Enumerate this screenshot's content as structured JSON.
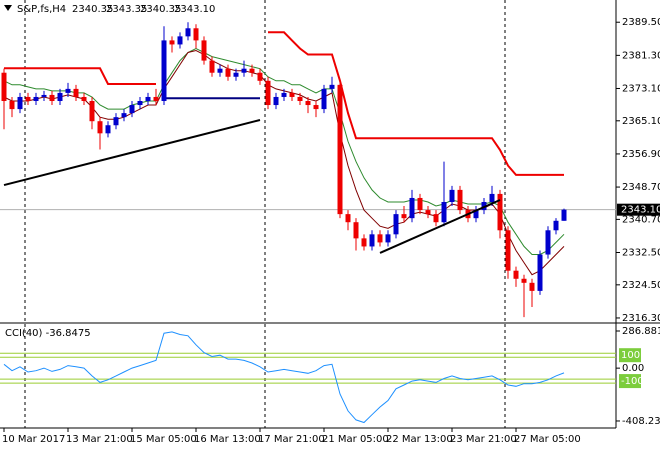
{
  "chart_data": [
    {
      "type": "candlestick",
      "title": "S&P,fs,H4",
      "ohlc_labels": [
        "2340.35",
        "2343.35",
        "2340.35",
        "2343.10"
      ],
      "open": [
        2377,
        2370,
        2368,
        2371,
        2370,
        2371,
        2371.5,
        2370,
        2372,
        2373,
        2371,
        2370,
        2365,
        2362,
        2364,
        2366,
        2367,
        2369,
        2370,
        2371,
        2370,
        2385,
        2384,
        2386,
        2388,
        2385,
        2380,
        2377,
        2378,
        2376,
        2377,
        2378,
        2377,
        2375,
        2369,
        2371,
        2372,
        2371,
        2370,
        2369,
        2368,
        2373,
        2374,
        2342,
        2340,
        2336,
        2334,
        2337,
        2335,
        2337,
        2342,
        2341,
        2346,
        2343,
        2342,
        2340,
        2345,
        2348,
        2343,
        2341,
        2343,
        2345,
        2347,
        2338,
        2328,
        2326,
        2325,
        2323,
        2332,
        2338,
        2340.35
      ],
      "high": [
        2378,
        2371,
        2372,
        2372,
        2372,
        2372.5,
        2372.5,
        2373,
        2374.5,
        2374,
        2372,
        2371,
        2366,
        2365,
        2367,
        2368,
        2370,
        2371,
        2372,
        2373,
        2388.5,
        2386,
        2387,
        2389.5,
        2389,
        2386,
        2381,
        2379,
        2379,
        2378,
        2380,
        2379,
        2378,
        2376,
        2372,
        2373,
        2373,
        2372,
        2371,
        2370,
        2374,
        2376,
        2375,
        2343,
        2341,
        2337,
        2338,
        2338,
        2338,
        2343,
        2344,
        2348,
        2347,
        2344,
        2343,
        2355,
        2349,
        2349,
        2344,
        2344,
        2346,
        2349,
        2348,
        2339,
        2329,
        2327,
        2326,
        2333,
        2339,
        2341,
        2343.35
      ],
      "low": [
        2363,
        2366,
        2367,
        2369,
        2369,
        2370,
        2369,
        2369,
        2371,
        2370,
        2369,
        2363,
        2358,
        2361,
        2363,
        2365,
        2366,
        2368,
        2369,
        2369,
        2369,
        2382,
        2383,
        2385,
        2383,
        2379,
        2376,
        2376,
        2375,
        2375,
        2376,
        2376,
        2374,
        2368,
        2368,
        2370,
        2370,
        2369,
        2367,
        2366,
        2367,
        2372,
        2341,
        2338,
        2333,
        2333,
        2333,
        2334,
        2334,
        2336,
        2340,
        2340,
        2342,
        2341,
        2339,
        2339,
        2344,
        2342,
        2340,
        2340,
        2342,
        2344,
        2336,
        2326,
        2324,
        2316.5,
        2319,
        2322,
        2331,
        2337,
        2340.35
      ],
      "close": [
        2370,
        2368,
        2371,
        2370,
        2371,
        2371.5,
        2370,
        2372,
        2373,
        2371,
        2370,
        2365,
        2362,
        2364,
        2366,
        2367,
        2369,
        2370,
        2371,
        2370,
        2385,
        2384,
        2386,
        2388,
        2385,
        2380,
        2377,
        2378,
        2376,
        2377,
        2378,
        2377,
        2375,
        2369,
        2371,
        2372,
        2371,
        2370,
        2369,
        2368,
        2373,
        2374,
        2342,
        2340,
        2336,
        2334,
        2337,
        2335,
        2337,
        2342,
        2341,
        2346,
        2343,
        2342,
        2340,
        2345,
        2348,
        2343,
        2341,
        2343,
        2345,
        2347,
        2338,
        2328,
        2326,
        2325,
        2323,
        2332,
        2338,
        2340.35,
        2343.1
      ],
      "up_color": "#0000cd",
      "down_color": "#ee0000",
      "ylim": [
        2315.3,
        2395
      ],
      "yticks": [
        {
          "value": 2389.5,
          "label": "2389.50"
        },
        {
          "value": 2381.3,
          "label": "2381.30"
        },
        {
          "value": 2373.1,
          "label": "2373.10"
        },
        {
          "value": 2365.1,
          "label": "2365.10"
        },
        {
          "value": 2356.9,
          "label": "2356.90"
        },
        {
          "value": 2348.7,
          "label": "2348.70"
        },
        {
          "value": 2340.7,
          "label": "2340.70"
        },
        {
          "value": 2332.5,
          "label": "2332.50"
        },
        {
          "value": 2324.5,
          "label": "2324.50"
        },
        {
          "value": 2316.3,
          "label": "2316.30"
        }
      ],
      "current_price": {
        "value": 2343.1,
        "label": "2343.10"
      },
      "lines": [
        {
          "color": "#2e8b2e",
          "values": [
            2375,
            2374,
            2374,
            2373.5,
            2373,
            2373,
            2372.5,
            2372.5,
            2372.5,
            2372,
            2372,
            2371,
            2369,
            2368,
            2368,
            2368,
            2369,
            2369.5,
            2370,
            2370,
            2374,
            2377,
            2380,
            2382,
            2383,
            2382,
            2381,
            2380.5,
            2380,
            2379.5,
            2379,
            2378.5,
            2378,
            2376,
            2375,
            2375,
            2374,
            2374,
            2373,
            2372,
            2373,
            2373,
            2367,
            2360,
            2355,
            2351,
            2348,
            2346,
            2345,
            2345,
            2345,
            2345.5,
            2345.5,
            2345,
            2344,
            2344.5,
            2345.5,
            2345,
            2344.5,
            2344.5,
            2344.5,
            2345,
            2344,
            2340,
            2337,
            2334,
            2332,
            2332,
            2333,
            2335,
            2337
          ]
        },
        {
          "color": "#800000",
          "values": [
            2371,
            2370,
            2370,
            2370,
            2370.5,
            2371,
            2370.5,
            2371,
            2371.5,
            2371,
            2370.5,
            2368.5,
            2366,
            2365.5,
            2365.5,
            2366,
            2367,
            2368,
            2369,
            2369,
            2373,
            2376,
            2379,
            2382,
            2382.5,
            2381.5,
            2380,
            2379,
            2378,
            2377.5,
            2377.5,
            2377,
            2376.5,
            2374,
            2373,
            2372.5,
            2372,
            2371.5,
            2370.5,
            2370,
            2371,
            2372,
            2362,
            2354,
            2348,
            2343,
            2341,
            2339,
            2338.5,
            2339.5,
            2340,
            2342,
            2342.5,
            2342,
            2341.5,
            2343,
            2344.5,
            2344,
            2343,
            2343,
            2343.5,
            2344.5,
            2342,
            2337,
            2333,
            2330,
            2327,
            2328,
            2330,
            2332,
            2334
          ]
        },
        {
          "color": "#ee0000",
          "values": [
            2378.1,
            2378.1,
            2378.1,
            2378.1,
            2378.1,
            2378.1,
            2378.1,
            2378.1,
            2378.1,
            2378.1,
            2378.1,
            2378.1,
            2378.1,
            2374.2,
            2374.2,
            2374.2,
            2374.2,
            2374.2,
            2374.2,
            2374.2,
            null,
            null,
            null,
            null,
            null,
            null,
            null,
            null,
            null,
            null,
            null,
            null,
            null,
            2387,
            2387,
            2387,
            2385,
            2383,
            2381.5,
            2381.5,
            2381.5,
            2381.5,
            2375,
            2367,
            2360.8,
            2360.8,
            2360.8,
            2360.8,
            2360.8,
            2360.8,
            2360.8,
            2360.8,
            2360.8,
            2360.8,
            2360.8,
            2360.8,
            2360.8,
            2360.8,
            2360.8,
            2360.8,
            2360.8,
            2360.8,
            2357.9,
            2354,
            2351.7,
            2351.7,
            2351.7,
            2351.7,
            2351.7,
            2351.7,
            2351.7
          ]
        },
        {
          "color": "#000080",
          "values": [
            null,
            null,
            null,
            null,
            null,
            null,
            null,
            null,
            null,
            null,
            null,
            null,
            null,
            null,
            null,
            null,
            null,
            null,
            null,
            null,
            2370.7,
            2370.7,
            2370.7,
            2370.7,
            2370.7,
            2370.7,
            2370.7,
            2370.7,
            2370.7,
            2370.7,
            2370.7,
            2370.7,
            2370.7,
            null,
            null,
            null,
            null,
            null,
            null,
            null,
            null,
            null,
            null,
            null,
            null,
            null,
            null,
            null,
            null,
            null,
            null,
            null,
            null,
            null,
            null,
            null,
            null,
            null,
            null,
            null,
            null,
            null,
            null,
            null,
            null,
            null,
            null,
            null,
            null,
            null,
            null
          ]
        }
      ],
      "trendlines": [
        {
          "start_index": 0,
          "end_index": 32,
          "start": 2349.2,
          "end": 2365.3,
          "color": "#000000"
        },
        {
          "start_index": 47,
          "end_index": 62,
          "start": 2332.4,
          "end": 2345.5,
          "color": "#000000"
        }
      ]
    },
    {
      "type": "line",
      "title": "CCI(40) -36.8475",
      "categories": [
        "10 Mar 2017",
        null,
        null,
        null,
        null,
        null,
        null,
        null,
        "13 Mar 21:00",
        null,
        null,
        null,
        null,
        null,
        null,
        null,
        "15 Mar 05:00",
        null,
        null,
        null,
        null,
        null,
        null,
        null,
        "16 Mar 13:00",
        null,
        null,
        null,
        null,
        null,
        null,
        null,
        "17 Mar 21:00",
        null,
        null,
        null,
        null,
        null,
        null,
        null,
        "21 Mar 05:00",
        null,
        null,
        null,
        null,
        null,
        null,
        null,
        "22 Mar 13:00",
        null,
        null,
        null,
        null,
        null,
        null,
        null,
        "23 Mar 21:00",
        null,
        null,
        null,
        null,
        null,
        null,
        null,
        "27 Mar 05:00",
        null,
        null,
        null,
        null,
        null,
        null
      ],
      "values": [
        30,
        -20,
        10,
        -30,
        -20,
        0,
        -25,
        -10,
        20,
        10,
        0,
        -60,
        -110,
        -90,
        -60,
        -30,
        0,
        20,
        40,
        60,
        270,
        280,
        260,
        250,
        180,
        120,
        90,
        100,
        70,
        70,
        60,
        40,
        10,
        -30,
        -20,
        -10,
        -20,
        -30,
        -40,
        -20,
        20,
        30,
        -200,
        -330,
        -400,
        -420,
        -360,
        -300,
        -250,
        -160,
        -130,
        -100,
        -90,
        -100,
        -110,
        -80,
        -60,
        -80,
        -90,
        -80,
        -70,
        -60,
        -90,
        -130,
        -140,
        -120,
        -120,
        -110,
        -90,
        -60,
        -36.8475
      ],
      "color": "#1e90ff",
      "ylim": [
        -462.5,
        333.3
      ],
      "yticks": [
        286.8815,
        {
          "value": 0,
          "label": "0.00"
        },
        -408.2395
      ],
      "levels": [
        {
          "value": 100,
          "label": "100"
        },
        {
          "value": -100,
          "label": "-100"
        }
      ],
      "level_color": "#9acd32"
    }
  ]
}
